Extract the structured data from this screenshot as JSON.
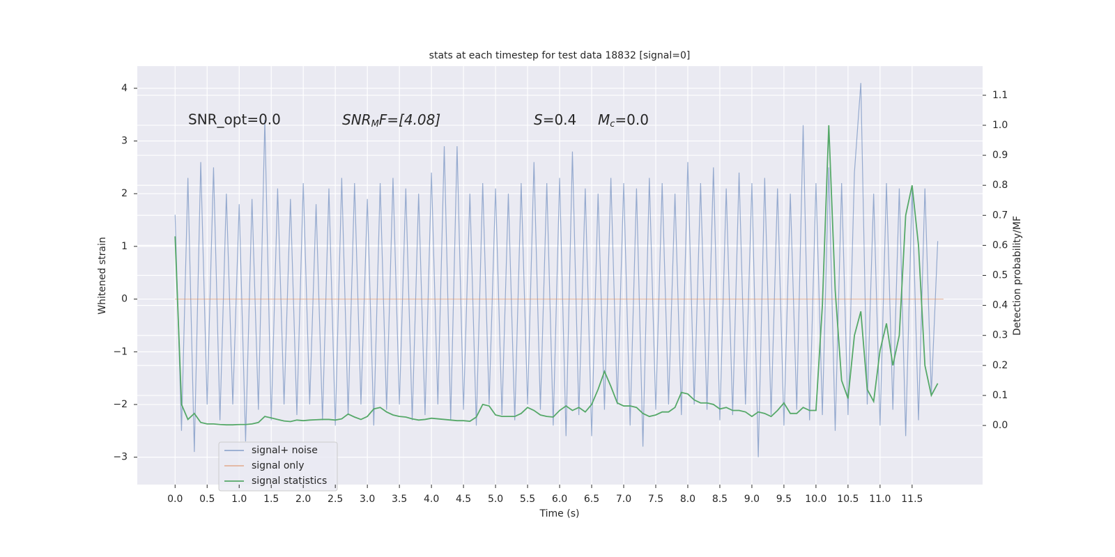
{
  "chart_data": {
    "type": "line",
    "title": "stats at each timestep for test data 18832 [signal=0]",
    "xlabel": "Time (s)",
    "ylabel": "Whitened strain",
    "y2label": "Detection probability/MF",
    "annotations": [
      "SNR_opt=0.0",
      [
        "SNR",
        "M",
        "F=[4.08]"
      ],
      [
        "S",
        "=0.4"
      ],
      [
        "M",
        "c",
        "=0.0"
      ]
    ],
    "grid": true,
    "legend": "lower left",
    "xlim": [
      -0.59,
      12.6
    ],
    "ylim": [
      -3.52,
      4.42
    ],
    "y2lim": [
      -0.197,
      1.197
    ],
    "xticks": [
      {
        "value": 0,
        "label": "0.0"
      },
      0.5,
      {
        "value": 1,
        "label": "1.0"
      },
      1.5,
      {
        "value": 2,
        "label": "2.0"
      },
      2.5,
      {
        "value": 3,
        "label": "3.0"
      },
      3.5,
      {
        "value": 4,
        "label": "4.0"
      },
      4.5,
      {
        "value": 5,
        "label": "5.0"
      },
      5.5,
      {
        "value": 6,
        "label": "6.0"
      },
      6.5,
      {
        "value": 7,
        "label": "7.0"
      },
      7.5,
      {
        "value": 8,
        "label": "8.0"
      },
      8.5,
      {
        "value": 9,
        "label": "9.0"
      },
      9.5,
      {
        "value": 10,
        "label": "10.0"
      },
      10.5,
      {
        "value": 11,
        "label": "11.0"
      },
      11.5
    ],
    "yticks": [
      {
        "value": -3,
        "label": "−3"
      },
      {
        "value": -2,
        "label": "−2"
      },
      {
        "value": -1,
        "label": "−1"
      },
      0,
      1,
      2,
      3,
      4
    ],
    "y2ticks": [
      {
        "value": 0,
        "label": "0.0"
      },
      0.1,
      0.2,
      0.3,
      0.4,
      0.5,
      0.6,
      0.7,
      0.8,
      0.9,
      {
        "value": 1,
        "label": "1.0"
      },
      1.1
    ],
    "x": [
      0.0,
      0.1,
      0.2,
      0.3,
      0.4,
      0.5,
      0.6,
      0.7,
      0.8,
      0.9,
      1.0,
      1.1,
      1.2,
      1.3,
      1.4,
      1.5,
      1.6,
      1.7,
      1.8,
      1.9,
      2.0,
      2.1,
      2.2,
      2.3,
      2.4,
      2.5,
      2.6,
      2.7,
      2.8,
      2.9,
      3.0,
      3.1,
      3.2,
      3.3,
      3.4,
      3.5,
      3.6,
      3.7,
      3.8,
      3.9,
      4.0,
      4.1,
      4.2,
      4.3,
      4.4,
      4.5,
      4.6,
      4.7,
      4.8,
      4.9,
      5.0,
      5.1,
      5.2,
      5.3,
      5.4,
      5.5,
      5.6,
      5.7,
      5.8,
      5.9,
      6.0,
      6.1,
      6.2,
      6.3,
      6.4,
      6.5,
      6.6,
      6.7,
      6.8,
      6.9,
      7.0,
      7.1,
      7.2,
      7.3,
      7.4,
      7.5,
      7.6,
      7.7,
      7.8,
      7.9,
      8.0,
      8.1,
      8.2,
      8.3,
      8.4,
      8.5,
      8.6,
      8.7,
      8.8,
      8.9,
      9.0,
      9.1,
      9.2,
      9.3,
      9.4,
      9.5,
      9.6,
      9.7,
      9.8,
      9.9,
      10.0,
      10.1,
      10.2,
      10.3,
      10.4,
      10.5,
      10.6,
      10.7,
      10.8,
      10.9,
      11.0,
      11.1,
      11.2,
      11.3,
      11.4,
      11.5,
      11.6,
      11.7,
      11.8,
      11.9
    ],
    "series": [
      {
        "name": "signal+ noise",
        "color": "#4c72b0",
        "values": [
          1.6,
          -2.5,
          2.3,
          -2.9,
          2.6,
          -2.0,
          2.5,
          -2.3,
          2.0,
          -2.0,
          1.8,
          -2.7,
          1.9,
          -2.1,
          3.4,
          -2.3,
          2.1,
          -2.0,
          1.9,
          -2.2,
          2.2,
          -2.0,
          1.8,
          -2.3,
          2.1,
          -2.4,
          2.3,
          -2.2,
          2.2,
          -2.0,
          1.9,
          -2.4,
          2.2,
          -2.1,
          2.3,
          -2.0,
          2.1,
          -2.3,
          2.0,
          -2.2,
          2.4,
          -2.0,
          2.9,
          -2.3,
          2.9,
          -2.1,
          2.0,
          -2.4,
          2.2,
          -2.0,
          2.1,
          -2.2,
          2.0,
          -2.3,
          2.2,
          -2.0,
          2.6,
          -2.1,
          2.2,
          -2.4,
          2.3,
          -2.6,
          2.8,
          -2.2,
          2.1,
          -2.6,
          2.0,
          -2.1,
          2.3,
          -2.0,
          2.2,
          -2.4,
          2.1,
          -2.8,
          2.3,
          -2.1,
          2.2,
          -2.0,
          2.0,
          -2.2,
          2.6,
          -2.0,
          2.2,
          -2.1,
          2.5,
          -2.3,
          2.1,
          -2.2,
          2.4,
          -2.0,
          2.2,
          -3.0,
          2.3,
          -2.2,
          2.1,
          -2.4,
          2.0,
          -2.1,
          3.3,
          -2.3,
          2.2,
          -2.2,
          2.5,
          -2.5,
          2.2,
          -2.2,
          2.4,
          4.1,
          -2.0,
          2.0,
          -2.4,
          2.2,
          -2.1,
          2.1,
          -2.6,
          2.1,
          -2.3,
          2.1,
          -1.8,
          1.1
        ]
      },
      {
        "name": "signal only",
        "color": "#dd8452",
        "x": [
          0.0,
          11.99
        ],
        "values": [
          0,
          0
        ]
      },
      {
        "name": "signal statistics",
        "color": "#55a868",
        "axis": "y2",
        "values": [
          0.63,
          0.07,
          0.02,
          0.04,
          0.01,
          0.005,
          0.005,
          0.003,
          0.002,
          0.002,
          0.003,
          0.003,
          0.005,
          0.01,
          0.03,
          0.025,
          0.02,
          0.015,
          0.013,
          0.018,
          0.016,
          0.018,
          0.019,
          0.02,
          0.02,
          0.018,
          0.022,
          0.038,
          0.028,
          0.02,
          0.03,
          0.055,
          0.06,
          0.045,
          0.035,
          0.03,
          0.028,
          0.022,
          0.018,
          0.02,
          0.024,
          0.022,
          0.02,
          0.018,
          0.016,
          0.016,
          0.014,
          0.028,
          0.07,
          0.065,
          0.035,
          0.03,
          0.03,
          0.03,
          0.04,
          0.06,
          0.05,
          0.035,
          0.03,
          0.028,
          0.05,
          0.065,
          0.05,
          0.06,
          0.045,
          0.07,
          0.12,
          0.18,
          0.13,
          0.075,
          0.065,
          0.065,
          0.06,
          0.04,
          0.03,
          0.035,
          0.045,
          0.045,
          0.06,
          0.11,
          0.105,
          0.085,
          0.075,
          0.075,
          0.07,
          0.055,
          0.06,
          0.05,
          0.05,
          0.045,
          0.03,
          0.045,
          0.04,
          0.03,
          0.05,
          0.075,
          0.04,
          0.04,
          0.06,
          0.05,
          0.05,
          0.4,
          1.0,
          0.45,
          0.15,
          0.09,
          0.3,
          0.38,
          0.12,
          0.08,
          0.25,
          0.34,
          0.2,
          0.3,
          0.7,
          0.8,
          0.6,
          0.2,
          0.1,
          0.14
        ]
      }
    ]
  }
}
